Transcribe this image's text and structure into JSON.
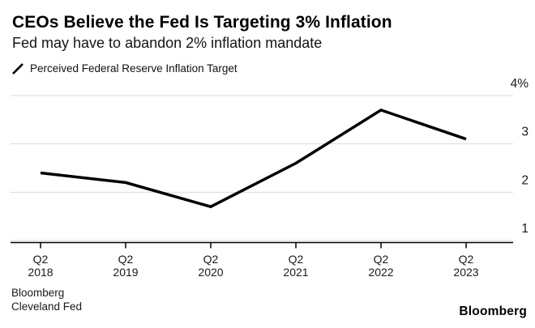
{
  "header": {
    "title": "CEOs Believe the Fed Is Targeting 3% Inflation",
    "subtitle": "Fed may have to abandon 2% inflation mandate"
  },
  "legend": {
    "label": "Perceived Federal Reserve Inflation Target"
  },
  "chart_data": {
    "type": "line",
    "title": "CEOs Believe the Fed Is Targeting 3% Inflation",
    "subtitle": "Fed may have to abandon 2% inflation mandate",
    "categories": [
      "Q2 2018",
      "Q2 2019",
      "Q2 2020",
      "Q2 2021",
      "Q2 2022",
      "Q2 2023"
    ],
    "series": [
      {
        "name": "Perceived Federal Reserve Inflation Target",
        "values": [
          2.4,
          2.2,
          1.7,
          2.6,
          3.7,
          3.1
        ]
      }
    ],
    "ylim": [
      1,
      4
    ],
    "yticks": [
      1,
      2,
      3,
      4
    ],
    "ytick_labels": [
      "1",
      "2",
      "3",
      "4%"
    ],
    "xlabel": "",
    "ylabel": "",
    "grid": true,
    "legend_position": "top-left",
    "colors": {
      "line": "#000000",
      "gridline": "#d9d9d9",
      "axis": "#000000",
      "tick_text": "#1a1a1a"
    }
  },
  "footer": {
    "source_line1": "Bloomberg",
    "source_line2": "Cleveland Fed",
    "logo": "Bloomberg"
  }
}
